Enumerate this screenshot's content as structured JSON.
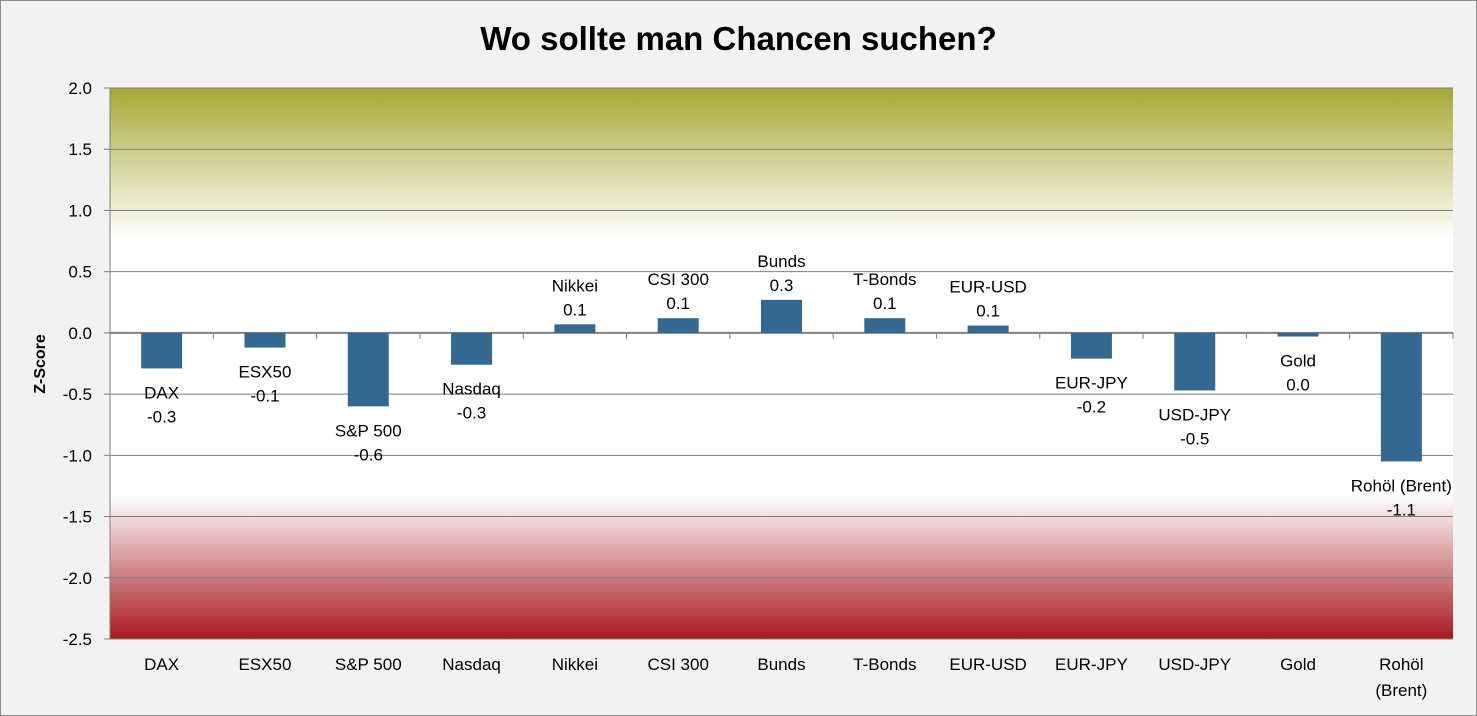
{
  "chart_data": {
    "type": "bar",
    "title": "Wo sollte man Chancen suchen?",
    "ylabel": "Z-Score",
    "xlabel": "",
    "ylim": [
      -2.5,
      2.0
    ],
    "yticks": [
      2.0,
      1.5,
      1.0,
      0.5,
      0.0,
      -0.5,
      -1.0,
      -1.5,
      -2.0,
      -2.5
    ],
    "ytick_labels": [
      "2.0",
      "1.5",
      "1.0",
      "0.5",
      "0.0",
      "-0.5",
      "-1.0",
      "-1.5",
      "-2.0",
      "-2.5"
    ],
    "grid": true,
    "categories": [
      "DAX",
      "ESX50",
      "S&P 500",
      "Nasdaq",
      "Nikkei",
      "CSI 300",
      "Bunds",
      "T-Bonds",
      "EUR-USD",
      "EUR-JPY",
      "USD-JPY",
      "Gold",
      "Rohöl (Brent)"
    ],
    "category_axis_lines": [
      [
        "DAX"
      ],
      [
        "ESX50"
      ],
      [
        "S&P 500"
      ],
      [
        "Nasdaq"
      ],
      [
        "Nikkei"
      ],
      [
        "CSI 300"
      ],
      [
        "Bunds"
      ],
      [
        "T-Bonds"
      ],
      [
        "EUR-USD"
      ],
      [
        "EUR-JPY"
      ],
      [
        "USD-JPY"
      ],
      [
        "Gold"
      ],
      [
        "Rohöl",
        "(Brent)"
      ]
    ],
    "values": [
      -0.29,
      -0.12,
      -0.6,
      -0.26,
      0.07,
      0.12,
      0.27,
      0.12,
      0.06,
      -0.21,
      -0.47,
      -0.03,
      -1.05
    ],
    "data_labels": [
      "-0.3",
      "-0.1",
      "-0.6",
      "-0.3",
      "0.1",
      "0.1",
      "0.3",
      "0.1",
      "0.1",
      "-0.2",
      "-0.5",
      "0.0",
      "-1.1"
    ],
    "bar_color": "#326891",
    "upper_band_color": "#a7a834",
    "lower_band_color": "#a8191f"
  }
}
